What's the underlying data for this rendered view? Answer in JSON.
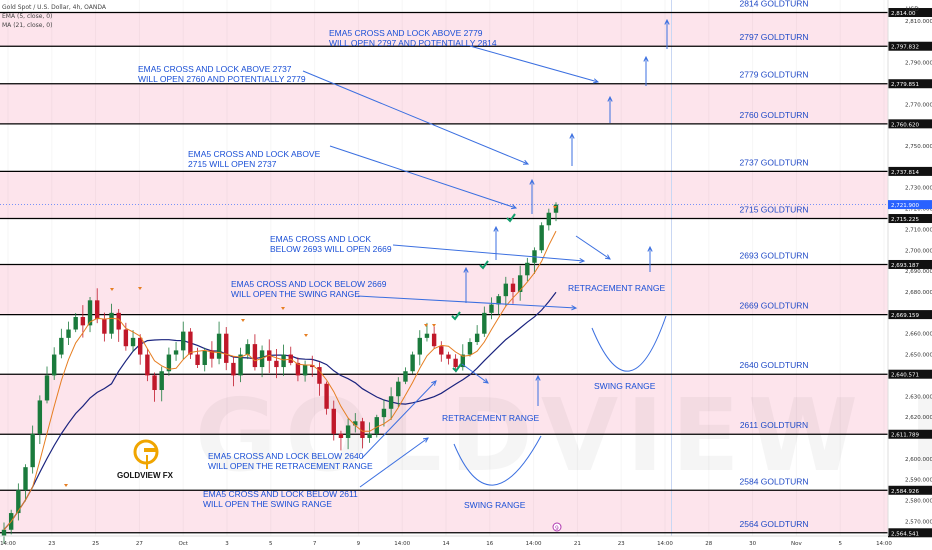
{
  "header": {
    "symbol": "Gold Spot / U.S. Dollar, 4h, OANDA",
    "ema": "EMA (5, close, 0)",
    "ma": "MA (21, close, 0)"
  },
  "currency": "USD",
  "logo": {
    "text": "GOLDVIEW FX"
  },
  "watermark": "GOLDVIEW FX",
  "colors": {
    "zone_fill": "#fde4ec",
    "level_line": "#000000",
    "annotation": "#1a4fd6",
    "arrow": "#3b6fe0",
    "candle_up": "#1a7a3c",
    "candle_down": "#c0182a",
    "ema": "#e67e22",
    "ma": "#1a237e",
    "check": "#119c6a",
    "logo_gold": "#f0a500"
  },
  "chart_data": {
    "type": "candlestick",
    "title": "",
    "y_axis": {
      "min": 2563,
      "max": 2820,
      "ticks": [
        2570,
        2580,
        2590,
        2600,
        2610,
        2620,
        2630,
        2640,
        2650,
        2660,
        2670,
        2680,
        2690,
        2700,
        2710,
        2720,
        2730,
        2740,
        2750,
        2760,
        2770,
        2780,
        2790,
        2800,
        2810
      ]
    },
    "x_axis": {
      "ticks": [
        "14:00",
        "23",
        "25",
        "27",
        "Oct",
        "3",
        "5",
        "7",
        "9",
        "14:00",
        "14",
        "16",
        "14:00",
        "21",
        "23",
        "14:00",
        "28",
        "30",
        "Nov",
        "5",
        "14:00"
      ]
    },
    "current_price": 2721.9,
    "levels": [
      {
        "price": 2814.0,
        "label": "2814 GOLDTURN",
        "tag": "2,814.00"
      },
      {
        "price": 2797.832,
        "label": "2797 GOLDTURN",
        "tag": "2,797.832"
      },
      {
        "price": 2779.851,
        "label": "2779 GOLDTURN",
        "tag": "2,779.851"
      },
      {
        "price": 2760.62,
        "label": "2760 GOLDTURN",
        "tag": "2,760.620"
      },
      {
        "price": 2737.814,
        "label": "2737 GOLDTURN",
        "tag": "2,737.814"
      },
      {
        "price": 2715.225,
        "label": "2715 GOLDTURN",
        "tag": "2,715.225"
      },
      {
        "price": 2693.187,
        "label": "2693 GOLDTURN",
        "tag": "2,693.187"
      },
      {
        "price": 2669.159,
        "label": "2669 GOLDTURN",
        "tag": "2,669.159"
      },
      {
        "price": 2640.571,
        "label": "2640 GOLDTURN",
        "tag": "2,640.571"
      },
      {
        "price": 2611.789,
        "label": "2611 GOLDTURN",
        "tag": "2,611.789"
      },
      {
        "price": 2584.926,
        "label": "2584 GOLDTURN",
        "tag": "2,584.926"
      },
      {
        "price": 2564.541,
        "label": "2564 GOLDTURN",
        "tag": "2,564.541"
      }
    ],
    "zones": [
      [
        2797.832,
        2814.0
      ],
      [
        2760.62,
        2779.851
      ],
      [
        2715.225,
        2737.814
      ],
      [
        2669.159,
        2693.187
      ],
      [
        2611.789,
        2640.571
      ],
      [
        2564.541,
        2584.926
      ]
    ],
    "annotations": [
      {
        "lines": [
          "EMA5 CROSS AND LOCK ABOVE 2779",
          "WILL OPEN 2797 AND POTENTIALLY 2814"
        ]
      },
      {
        "lines": [
          "EMA5 CROSS AND LOCK ABOVE 2737",
          "WILL OPEN 2760 AND POTENTIALLY 2779"
        ]
      },
      {
        "lines": [
          "EMA5 CROSS AND LOCK ABOVE",
          "2715 WILL OPEN 2737"
        ]
      },
      {
        "lines": [
          "EMA5 CROSS AND LOCK",
          "BELOW 2693 WILL OPEN 2669"
        ]
      },
      {
        "lines": [
          "EMA5 CROSS AND LOCK BELOW 2669",
          "WILL OPEN THE SWING RANGE"
        ]
      },
      {
        "lines": [
          "EMA5 CROSS AND LOCK BELOW 2640",
          "WILL OPEN THE RETRACEMENT RANGE"
        ]
      },
      {
        "lines": [
          "EMA5 CROSS AND LOCK BELOW 2611",
          "WILL OPEN THE SWING RANGE"
        ]
      },
      {
        "lines": [
          "RETRACEMENT RANGE"
        ]
      },
      {
        "lines": [
          "SWING RANGE"
        ]
      },
      {
        "lines": [
          "RETRACEMENT RANGE"
        ]
      },
      {
        "lines": [
          "SWING RANGE"
        ]
      }
    ],
    "ohlc_path": [
      2566,
      2574,
      2585,
      2596,
      2612,
      2628,
      2640,
      2650,
      2658,
      2662,
      2668,
      2664,
      2676,
      2667,
      2660,
      2670,
      2662,
      2654,
      2658,
      2650,
      2640,
      2633,
      2642,
      2650,
      2652,
      2661,
      2650,
      2645,
      2652,
      2648,
      2660,
      2646,
      2640,
      2650,
      2655,
      2644,
      2652,
      2647,
      2644,
      2650,
      2646,
      2640,
      2645,
      2644,
      2636,
      2624,
      2612,
      2610,
      2616,
      2618,
      2610,
      2612,
      2620,
      2624,
      2630,
      2637,
      2642,
      2650,
      2658,
      2660,
      2654,
      2650,
      2648,
      2644,
      2650,
      2656,
      2660,
      2670,
      2674,
      2678,
      2684,
      2680,
      2688,
      2694,
      2700,
      2712,
      2718,
      2721.9
    ]
  }
}
